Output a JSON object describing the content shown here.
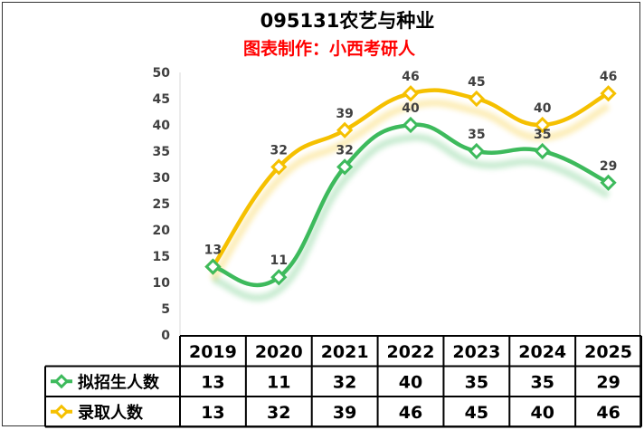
{
  "chart_data": {
    "type": "line",
    "title": "095131农艺与种业",
    "subtitle": "图表制作：小西考研人",
    "categories": [
      "2019",
      "2020",
      "2021",
      "2022",
      "2023",
      "2024",
      "2025"
    ],
    "series": [
      {
        "name": "拟招生人数",
        "color": "#3dba5c",
        "values": [
          13,
          11,
          32,
          40,
          35,
          35,
          29
        ]
      },
      {
        "name": "录取人数",
        "color": "#f5c000",
        "values": [
          13,
          32,
          39,
          46,
          45,
          40,
          46
        ]
      }
    ],
    "ylim": [
      0,
      50
    ],
    "yticks": [
      0,
      5,
      10,
      15,
      20,
      25,
      30,
      35,
      40,
      45,
      50
    ],
    "grid": false,
    "legend": "data-table",
    "subtitle_color": "#ff0000"
  }
}
